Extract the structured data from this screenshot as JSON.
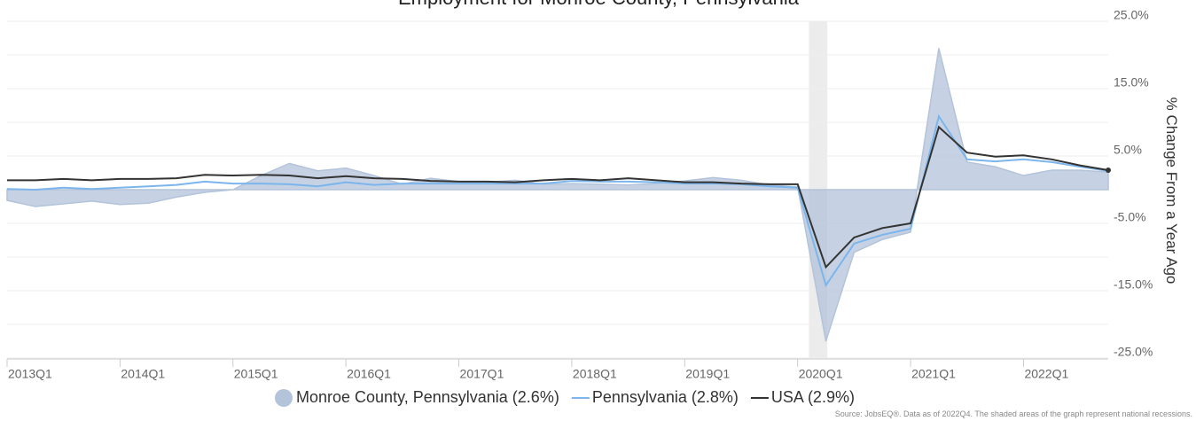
{
  "chart_data": {
    "type": "line",
    "title": "Employment for Monroe County, Pennsylvania",
    "y_axis_label": "% Change From a Year Ago",
    "source": "Source: JobsEQ®. Data as of 2022Q4. The shaded areas of the graph represent national recessions.",
    "categories": [
      "2013Q1",
      null,
      null,
      null,
      "2014Q1",
      null,
      null,
      null,
      "2015Q1",
      null,
      null,
      null,
      "2016Q1",
      null,
      null,
      null,
      "2017Q1",
      null,
      null,
      null,
      "2018Q1",
      null,
      null,
      null,
      "2019Q1",
      null,
      null,
      null,
      "2020Q1",
      null,
      null,
      null,
      "2021Q1",
      null,
      null,
      null,
      "2022Q1",
      null,
      null,
      null
    ],
    "recession": {
      "start": 28,
      "end": 29
    },
    "ylim": [
      -25,
      25
    ],
    "yticks": [
      {
        "value": 25,
        "label": "25.0%"
      },
      {
        "value": 15,
        "label": "15.0%"
      },
      {
        "value": 5,
        "label": "5.0%"
      },
      {
        "value": -5,
        "label": "-5.0%"
      },
      {
        "value": -15,
        "label": "-15.0%"
      },
      {
        "value": -25,
        "label": "-25.0%"
      }
    ],
    "minor_gridlines": [
      20,
      10,
      0,
      -10,
      -20
    ],
    "series": [
      {
        "name": "Monroe County, Pennsylvania (2.6%)",
        "style": "area",
        "color": "#b3c3da",
        "values": [
          -1.6,
          -2.5,
          -2.1,
          -1.7,
          -2.2,
          -2.0,
          -1.1,
          -0.4,
          0.0,
          2.1,
          3.9,
          2.8,
          3.2,
          2.1,
          0.8,
          1.7,
          1.2,
          1.1,
          1.4,
          0.8,
          0.9,
          0.8,
          0.7,
          0.9,
          1.3,
          1.8,
          1.4,
          0.7,
          0.4,
          -22.5,
          -9.3,
          -7.4,
          -6.3,
          21.0,
          4.1,
          3.4,
          2.1,
          2.9,
          2.9,
          2.6
        ]
      },
      {
        "name": "Pennsylvania (2.8%)",
        "style": "line",
        "color": "#7cb5ec",
        "values": [
          0.1,
          0.0,
          0.3,
          0.1,
          0.3,
          0.5,
          0.7,
          1.2,
          0.9,
          0.9,
          0.8,
          0.5,
          1.1,
          0.7,
          0.9,
          0.9,
          0.9,
          0.9,
          0.9,
          0.9,
          1.3,
          1.2,
          1.2,
          1.1,
          0.9,
          0.9,
          0.8,
          0.5,
          0.3,
          -14.2,
          -8.0,
          -6.7,
          -5.8,
          10.9,
          4.5,
          4.2,
          4.5,
          4.1,
          3.4,
          2.8
        ]
      },
      {
        "name": "USA (2.9%)",
        "style": "line",
        "color": "#333333",
        "values": [
          1.4,
          1.4,
          1.6,
          1.4,
          1.6,
          1.6,
          1.7,
          2.2,
          2.1,
          2.2,
          2.1,
          1.7,
          2.0,
          1.7,
          1.6,
          1.3,
          1.2,
          1.2,
          1.1,
          1.4,
          1.6,
          1.4,
          1.7,
          1.4,
          1.1,
          1.1,
          0.9,
          0.8,
          0.8,
          -11.5,
          -7.1,
          -5.7,
          -5.0,
          9.3,
          5.5,
          4.9,
          5.1,
          4.5,
          3.6,
          2.9
        ]
      }
    ]
  }
}
